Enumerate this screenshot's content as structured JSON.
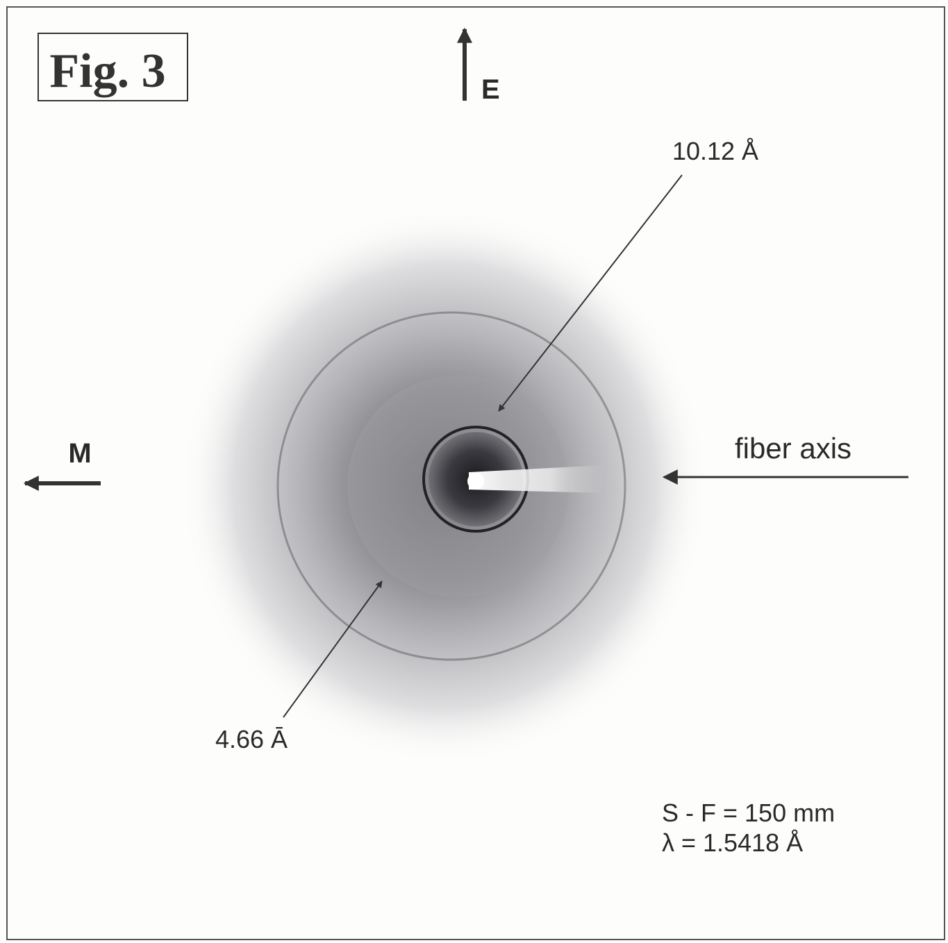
{
  "figure_label": "Fig. 3",
  "directions": {
    "top": "E",
    "left": "M"
  },
  "reflections": [
    "10.12 Å",
    "4.66 Ā"
  ],
  "beam": "fiber axis",
  "conditions": [
    "S - F = 150 mm",
    "λ = 1.5418 Å"
  ]
}
